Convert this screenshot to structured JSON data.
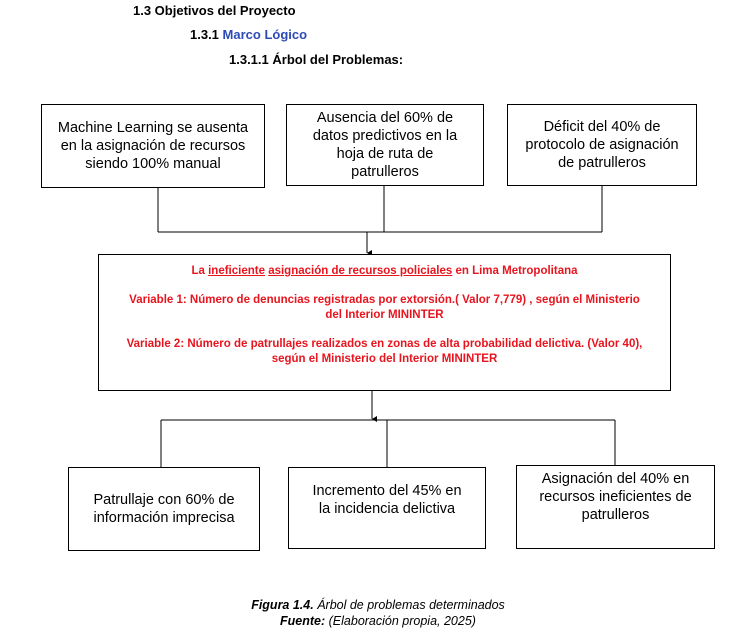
{
  "headings": {
    "h1": "1.3 Objetivos del Proyecto",
    "h2_num": "1.3.1",
    "h2_text": "Marco Lógico",
    "h3": "1.3.1.1 Árbol del Problemas:"
  },
  "causes": [
    "Machine Learning se ausenta en la asignación de recursos siendo 100% manual",
    "Ausencia del 60% de datos predictivos en la hoja de ruta de patrulleros",
    "Déficit del 40% de protocolo de asignación de patrulleros"
  ],
  "problem": {
    "title_pre": "La",
    "title_ineficiente": "ineficiente",
    "title_asignacion": "asignación de recursos policiales",
    "title_post": "en Lima Metropolitana",
    "variable1": "Variable 1: Número de denuncias registradas por extorsión.( Valor 7,779) , según el Ministerio del Interior MININTER",
    "variable2": "Variable 2: Número de patrullajes realizados en zonas de alta probabilidad delictiva. (Valor 40), según el Ministerio del Interior MININTER"
  },
  "effects": [
    "Patrullaje con 60% de información imprecisa",
    "Incremento del 45% en la incidencia delictiva",
    "Asignación del 40% en recursos ineficientes de patrulleros"
  ],
  "caption": {
    "figure_label": "Figura 1.4.",
    "figure_text": "Árbol de problemas determinados",
    "source_label": "Fuente:",
    "source_text": "(Elaboración propia, 2025)"
  },
  "colors": {
    "problem_text": "#e8141e",
    "heading_accent": "#2d4bb4"
  }
}
